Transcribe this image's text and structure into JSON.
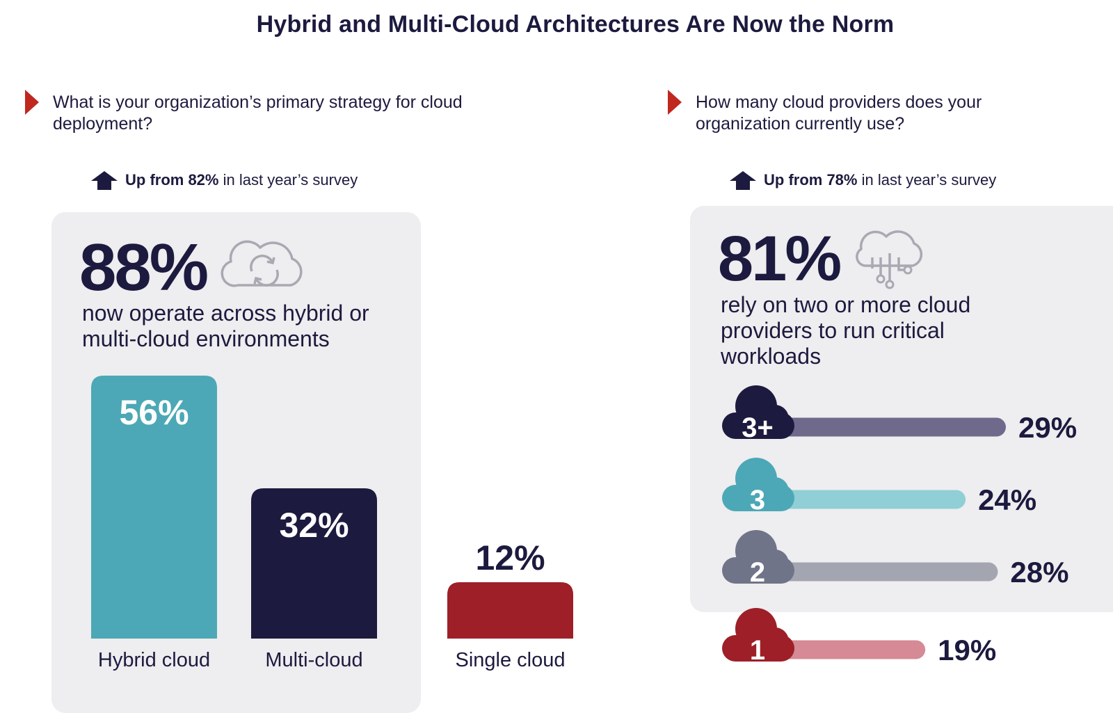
{
  "title": "Hybrid and Multi-Cloud Architectures Are Now the Norm",
  "colors": {
    "accent_red": "#c0271f",
    "navy": "#1c1a3e",
    "teal": "#4ca8b6",
    "light_teal": "#8fcfd5",
    "purple_gray": "#6f6a8c",
    "slate": "#707488",
    "light_slate": "#a3a6b1",
    "crimson": "#9e1f27",
    "pink": "#d58a95",
    "panel_bg": "#eeedef"
  },
  "left": {
    "question": "What is your organization’s primary strategy for cloud deployment?",
    "up_note_bold": "Up from 82%",
    "up_note_rest": "in last year’s survey",
    "big_stat": "88%",
    "big_stat_desc": "now operate across hybrid or multi-cloud environments",
    "icon": "cloud-sync-icon"
  },
  "right": {
    "question": "How many cloud providers does your organization currently use?",
    "up_note_bold": "Up from 78%",
    "up_note_rest": "in last year’s survey",
    "big_stat": "81%",
    "big_stat_desc": "rely on two or more cloud providers to run critical workloads",
    "icon": "cloud-network-icon"
  },
  "chart_data": [
    {
      "type": "bar",
      "title": "What is your organization’s primary strategy for cloud deployment?",
      "categories": [
        "Hybrid cloud",
        "Multi-cloud",
        "Single cloud"
      ],
      "values": [
        56,
        32,
        12
      ],
      "value_labels": [
        "56%",
        "32%",
        "12%"
      ],
      "colors": [
        "#4ca8b6",
        "#1c1a3e",
        "#9e1f27"
      ],
      "unit": "%",
      "ylim": [
        0,
        56
      ]
    },
    {
      "type": "bar",
      "orientation": "horizontal",
      "title": "How many cloud providers does your organization currently use?",
      "categories": [
        "3+",
        "3",
        "2",
        "1"
      ],
      "values": [
        29,
        24,
        28,
        19
      ],
      "value_labels": [
        "29%",
        "24%",
        "28%",
        "19%"
      ],
      "cloud_colors": [
        "#1c1a3e",
        "#4ca8b6",
        "#707488",
        "#9e1f27"
      ],
      "bar_colors": [
        "#6f6a8c",
        "#8fcfd5",
        "#a3a6b1",
        "#d58a95"
      ],
      "unit": "%",
      "xlim": [
        0,
        29
      ]
    }
  ]
}
